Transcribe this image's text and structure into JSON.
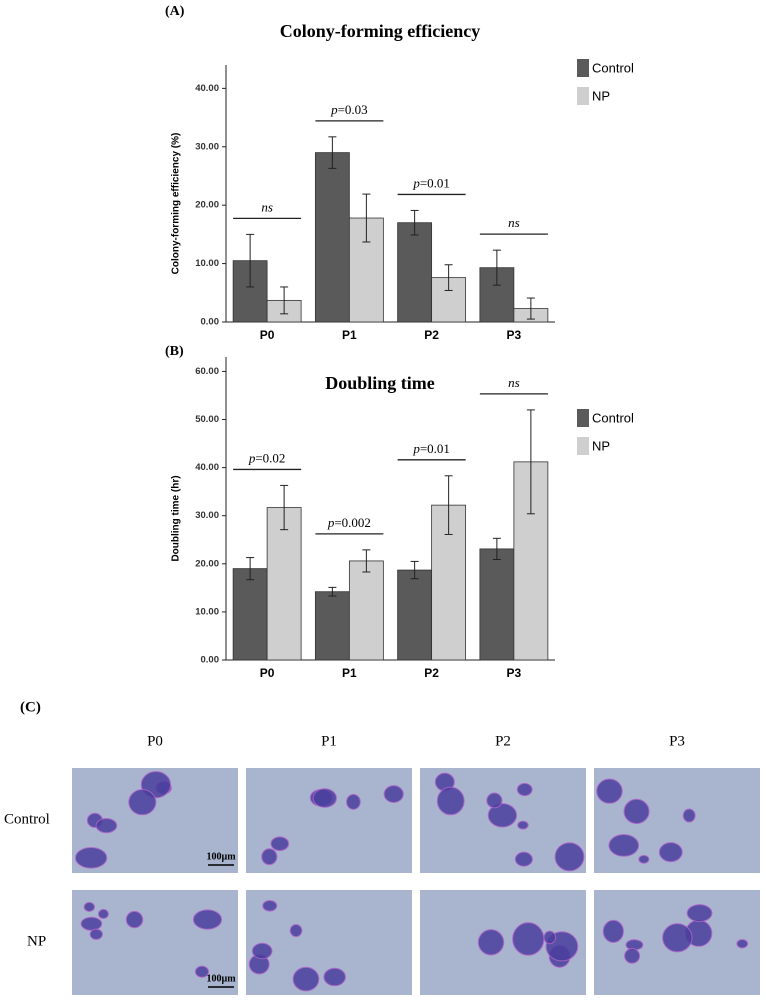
{
  "chart_data": [
    {
      "type": "bar",
      "panel_label": "(A)",
      "title": "Colony-forming efficiency",
      "y_label": "Colony-forming efficiency (%)",
      "categories": [
        "P0",
        "P1",
        "P2",
        "P3"
      ],
      "series": [
        {
          "name": "Control",
          "color": "#5a5a5a",
          "values": [
            10.5,
            29,
            17,
            9.3
          ],
          "errors": [
            4.5,
            2.7,
            2.1,
            3
          ]
        },
        {
          "name": "NP",
          "color": "#cfcfcf",
          "values": [
            3.7,
            17.8,
            7.6,
            2.3
          ],
          "errors": [
            2.3,
            4.1,
            2.2,
            1.8
          ]
        }
      ],
      "annotations": [
        "ns",
        "p=0.03",
        "p=0.01",
        "ns"
      ],
      "ylim": [
        0,
        44
      ],
      "yticks": [
        {
          "value": 0,
          "label": "0.00"
        },
        {
          "value": 10,
          "label": "10.00"
        },
        {
          "value": 20,
          "label": "20.00"
        },
        {
          "value": 30,
          "label": "30.00"
        },
        {
          "value": 40,
          "label": "40.00"
        }
      ],
      "legend": "upper right",
      "grid": false
    },
    {
      "type": "bar",
      "panel_label": "(B)",
      "title": "Doubling time",
      "y_label": "Doubling time (hr)",
      "categories": [
        "P0",
        "P1",
        "P2",
        "P3"
      ],
      "series": [
        {
          "name": "Control",
          "color": "#5a5a5a",
          "values": [
            19,
            14.2,
            18.7,
            23.1
          ],
          "errors": [
            2.3,
            0.9,
            1.8,
            2.2
          ]
        },
        {
          "name": "NP",
          "color": "#cfcfcf",
          "values": [
            31.7,
            20.6,
            32.2,
            41.2
          ],
          "errors": [
            4.6,
            2.3,
            6.1,
            10.8
          ]
        }
      ],
      "annotations": [
        "p=0.02",
        "p=0.002",
        "p=0.01",
        "ns"
      ],
      "ylim": [
        0,
        63
      ],
      "yticks": [
        {
          "value": 0,
          "label": "0.00"
        },
        {
          "value": 10,
          "label": "10.00"
        },
        {
          "value": 20,
          "label": "20.00"
        },
        {
          "value": 30,
          "label": "30.00"
        },
        {
          "value": 40,
          "label": "40.00"
        },
        {
          "value": 50,
          "label": "50.00"
        },
        {
          "value": 60,
          "label": "60.00"
        }
      ],
      "legend": "upper right",
      "grid": false
    }
  ],
  "panel_c": {
    "panel_label": "(C)",
    "columns": [
      "P0",
      "P1",
      "P2",
      "P3"
    ],
    "rows": [
      "Control",
      "NP"
    ],
    "scale_bar": "100µm"
  }
}
